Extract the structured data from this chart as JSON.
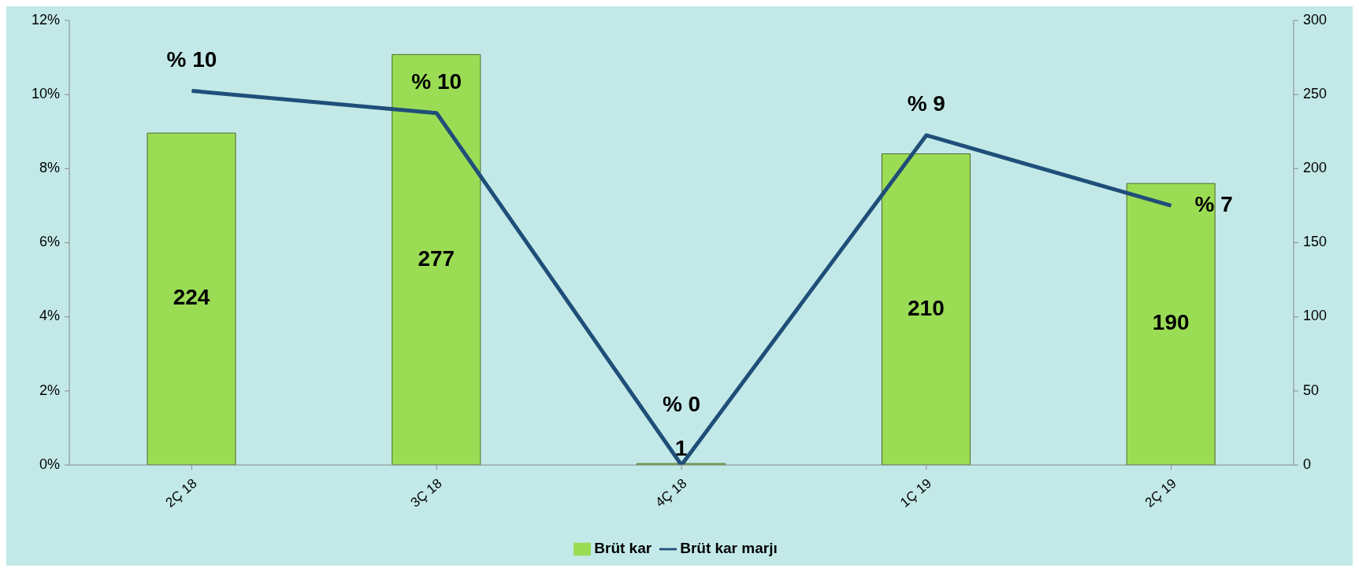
{
  "chart_data": {
    "type": "bar",
    "categories": [
      "2Ç 18",
      "3Ç 18",
      "4Ç 18",
      "1Ç 19",
      "2Ç 19"
    ],
    "series": [
      {
        "name": "Brüt kar",
        "axis": "y2",
        "color": "#9bdc55",
        "values": [
          224,
          277,
          1,
          210,
          190
        ],
        "value_labels": [
          "224",
          "277",
          "1",
          "210",
          "190"
        ]
      },
      {
        "name": "Brüt kar marjı",
        "type": "line",
        "axis": "y",
        "color": "#1f4e79",
        "values": [
          10.1,
          9.5,
          0,
          8.9,
          7.0
        ],
        "value_labels": [
          "% 10",
          "% 10",
          "% 0",
          "% 9",
          "% 7"
        ]
      }
    ],
    "ylim": [
      0,
      12
    ],
    "yticks": [
      {
        "value": 0,
        "label": "0%"
      },
      {
        "value": 2,
        "label": "2%"
      },
      {
        "value": 4,
        "label": "4%"
      },
      {
        "value": 6,
        "label": "6%"
      },
      {
        "value": 8,
        "label": "8%"
      },
      {
        "value": 10,
        "label": "10%"
      },
      {
        "value": 12,
        "label": "12%"
      }
    ],
    "y2lim": [
      0,
      300
    ],
    "y2ticks": [
      0,
      50,
      100,
      150,
      200,
      250,
      300
    ],
    "grid": false,
    "legend": "bottom",
    "marker": "none",
    "line_style": "solid"
  }
}
